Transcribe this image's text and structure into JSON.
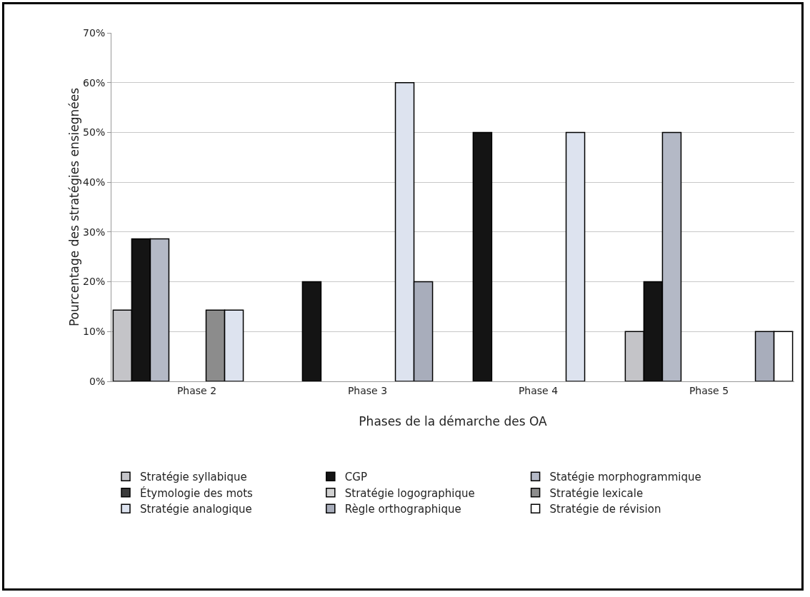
{
  "chart_data": {
    "type": "bar",
    "xlabel": "Phases de la démarche des OA",
    "ylabel": "Pourcentage des stratégies ensiegnées",
    "categories": [
      "Phase 2",
      "Phase 3",
      "Phase 4",
      "Phase 5"
    ],
    "series": [
      {
        "name": "Stratégie syllabique",
        "color": "#c4c4c8",
        "values": [
          14.3,
          0,
          0,
          10
        ]
      },
      {
        "name": "CGP",
        "color": "#141414",
        "values": [
          28.6,
          20,
          50,
          20
        ]
      },
      {
        "name": "Statégie morphogrammique",
        "color": "#b4b9c6",
        "values": [
          28.6,
          0,
          0,
          50
        ]
      },
      {
        "name": "Étymologie des mots",
        "color": "#3a3a3a",
        "values": [
          0,
          0,
          0,
          0
        ]
      },
      {
        "name": "Stratégie logographique",
        "color": "#d0d0d0",
        "values": [
          0,
          0,
          0,
          0
        ]
      },
      {
        "name": "Stratégie lexicale",
        "color": "#8c8c8c",
        "values": [
          14.3,
          0,
          0,
          0
        ]
      },
      {
        "name": "Stratégie analogique",
        "color": "#dde3ef",
        "values": [
          14.3,
          60,
          50,
          0
        ]
      },
      {
        "name": "Règle orthographique",
        "color": "#a8adbb",
        "values": [
          0,
          20,
          0,
          10
        ]
      },
      {
        "name": "Stratégie de révision",
        "color": "#ffffff",
        "values": [
          0,
          0,
          0,
          10
        ]
      }
    ],
    "ylim": [
      0,
      70
    ],
    "yticks": [
      {
        "value": 0,
        "label": "0%"
      },
      {
        "value": 10,
        "label": "10%"
      },
      {
        "value": 20,
        "label": "20%"
      },
      {
        "value": 30,
        "label": "30%"
      },
      {
        "value": 40,
        "label": "40%"
      },
      {
        "value": 50,
        "label": "50%"
      },
      {
        "value": 60,
        "label": "60%"
      },
      {
        "value": 70,
        "label": "70%"
      }
    ],
    "grid": "y",
    "legend": "bottom"
  }
}
